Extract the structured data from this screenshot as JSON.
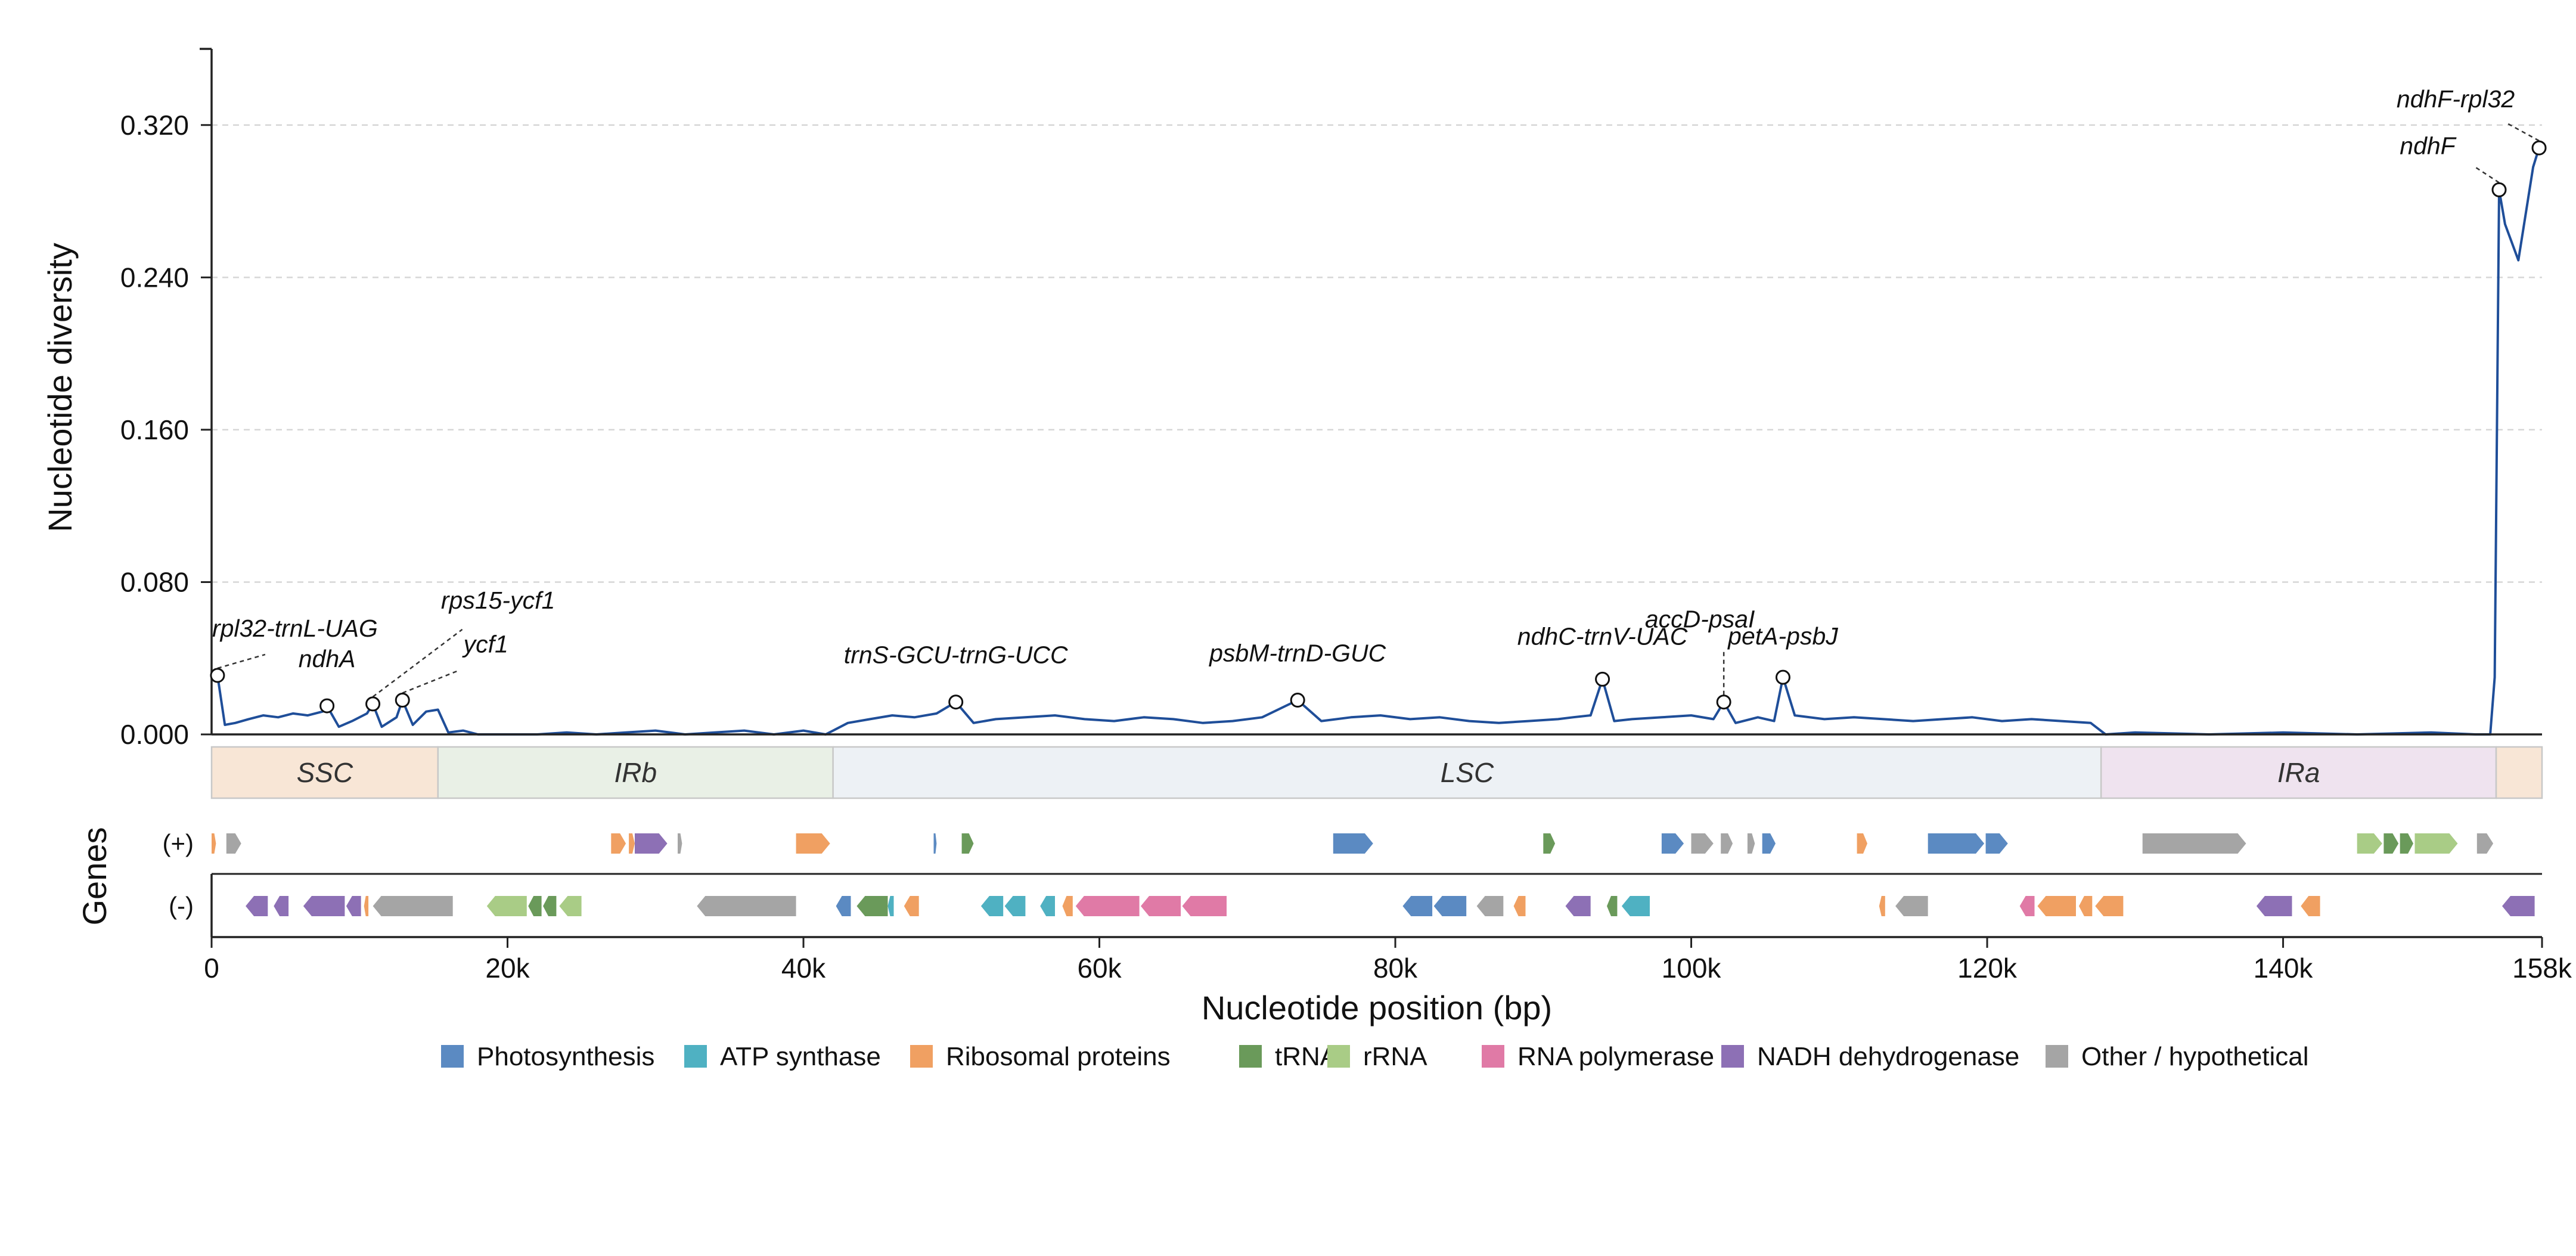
{
  "chart_data": {
    "type": "line",
    "ylabel": "Nucleotide diversity",
    "xlabel": "Nucleotide position (bp)",
    "genes_label": "Genes",
    "ylim": [
      0,
      0.36
    ],
    "xlim": [
      0,
      157500
    ],
    "y_ticks": [
      0.0,
      0.08,
      0.16,
      0.24,
      0.32
    ],
    "y_tick_labels": [
      "0.000",
      "0.080",
      "0.160",
      "0.240",
      "0.320"
    ],
    "x_ticks": [
      0,
      20000,
      40000,
      60000,
      80000,
      100000,
      120000,
      140000,
      157500
    ],
    "x_tick_labels": [
      "0",
      "20k",
      "40k",
      "60k",
      "80k",
      "100k",
      "120k",
      "140k",
      "158k"
    ],
    "grid": "horizontal dashed",
    "line_color": "#1f4e99",
    "series": [
      {
        "x": [
          0,
          400,
          900,
          1600,
          2500,
          3500,
          4500,
          5500,
          6500,
          7500,
          7800,
          8600,
          9500,
          10500,
          10900,
          11500,
          12500,
          12900,
          13600,
          14500,
          15300,
          16000,
          17000,
          18000,
          20000,
          22000,
          24000,
          26000,
          28000,
          30000,
          32000,
          34000,
          36000,
          38000,
          40000,
          41500,
          43000,
          44500,
          46000,
          47500,
          49000,
          50300,
          51500,
          53000,
          55000,
          57000,
          59000,
          61000,
          63000,
          65000,
          67000,
          69000,
          71000,
          73400,
          75000,
          77000,
          79000,
          81000,
          83000,
          85000,
          87000,
          89000,
          91000,
          92000,
          93200,
          94000,
          94800,
          96000,
          98000,
          100000,
          101500,
          102200,
          103000,
          104500,
          105600,
          106200,
          107000,
          109000,
          111000,
          113000,
          115000,
          117000,
          119000,
          121000,
          123000,
          125000,
          127000,
          128000,
          130000,
          135000,
          140000,
          145000,
          150000,
          153000,
          154000,
          154300,
          154600,
          155000,
          155900,
          156900,
          157300
        ],
        "y": [
          0.03,
          0.031,
          0.005,
          0.006,
          0.008,
          0.01,
          0.009,
          0.011,
          0.01,
          0.012,
          0.015,
          0.004,
          0.007,
          0.011,
          0.016,
          0.004,
          0.009,
          0.018,
          0.005,
          0.012,
          0.013,
          0.001,
          0.002,
          0.0,
          0.0,
          0.0,
          0.001,
          0.0,
          0.001,
          0.002,
          0.0,
          0.001,
          0.002,
          0.0,
          0.002,
          0.0,
          0.006,
          0.008,
          0.01,
          0.009,
          0.011,
          0.017,
          0.006,
          0.008,
          0.009,
          0.01,
          0.008,
          0.007,
          0.009,
          0.008,
          0.006,
          0.007,
          0.009,
          0.018,
          0.007,
          0.009,
          0.01,
          0.008,
          0.009,
          0.007,
          0.006,
          0.007,
          0.008,
          0.009,
          0.01,
          0.029,
          0.007,
          0.008,
          0.009,
          0.01,
          0.008,
          0.017,
          0.006,
          0.009,
          0.007,
          0.03,
          0.01,
          0.008,
          0.009,
          0.008,
          0.007,
          0.008,
          0.009,
          0.007,
          0.008,
          0.007,
          0.006,
          0.0,
          0.001,
          0.0,
          0.001,
          0.0,
          0.001,
          0.0,
          0.0,
          0.03,
          0.286,
          0.268,
          0.249,
          0.298,
          0.308
        ]
      }
    ],
    "peaks": [
      {
        "label": "rpl32-trnL-UAG",
        "x": 400,
        "y": 0.031
      },
      {
        "label": "ndhA",
        "x": 7800,
        "y": 0.015
      },
      {
        "label": "rps15-ycf1",
        "x": 10900,
        "y": 0.016
      },
      {
        "label": "ycf1",
        "x": 12900,
        "y": 0.018
      },
      {
        "label": "trnS-GCU-trnG-UCC",
        "x": 50300,
        "y": 0.017
      },
      {
        "label": "psbM-trnD-GUC",
        "x": 73400,
        "y": 0.018
      },
      {
        "label": "ndhC-trnV-UAC",
        "x": 94000,
        "y": 0.029
      },
      {
        "label": "accD-psaI",
        "x": 102200,
        "y": 0.017
      },
      {
        "label": "petA-psbJ",
        "x": 106200,
        "y": 0.03
      },
      {
        "label": "ndhF",
        "x": 154600,
        "y": 0.286
      },
      {
        "label": "ndhF-rpl32",
        "x": 157300,
        "y": 0.308
      }
    ],
    "regions": [
      {
        "label": "SSC",
        "start": 0,
        "end": 15300,
        "color": "#f8e6d6"
      },
      {
        "label": "IRb",
        "start": 15300,
        "end": 42000,
        "color": "#e9f0e6"
      },
      {
        "label": "LSC",
        "start": 42000,
        "end": 127700,
        "color": "#edf1f5"
      },
      {
        "label": "IRa",
        "start": 127700,
        "end": 154400,
        "color": "#efe3ef"
      },
      {
        "label": "",
        "start": 154400,
        "end": 157500,
        "color": "#f8e6d6"
      }
    ],
    "gene_tracks": {
      "plus_label": "(+)",
      "minus_label": "(-)",
      "plus": [
        {
          "s": 0,
          "e": 300,
          "c": "ribo"
        },
        {
          "s": 1000,
          "e": 2000,
          "c": "other"
        },
        {
          "s": 27000,
          "e": 28000,
          "c": "ribo"
        },
        {
          "s": 28200,
          "e": 28600,
          "c": "ribo"
        },
        {
          "s": 28600,
          "e": 30800,
          "c": "nadh"
        },
        {
          "s": 31500,
          "e": 31800,
          "c": "other"
        },
        {
          "s": 39500,
          "e": 41800,
          "c": "ribo"
        },
        {
          "s": 48800,
          "e": 49000,
          "c": "photo"
        },
        {
          "s": 50700,
          "e": 51500,
          "c": "trna"
        },
        {
          "s": 75800,
          "e": 78500,
          "c": "photo"
        },
        {
          "s": 90000,
          "e": 90800,
          "c": "trna"
        },
        {
          "s": 98000,
          "e": 99500,
          "c": "photo"
        },
        {
          "s": 100000,
          "e": 101500,
          "c": "other"
        },
        {
          "s": 102000,
          "e": 102800,
          "c": "other"
        },
        {
          "s": 103800,
          "e": 104300,
          "c": "other"
        },
        {
          "s": 104800,
          "e": 105700,
          "c": "photo"
        },
        {
          "s": 111200,
          "e": 111900,
          "c": "ribo"
        },
        {
          "s": 116000,
          "e": 119800,
          "c": "photo"
        },
        {
          "s": 119900,
          "e": 121400,
          "c": "photo"
        },
        {
          "s": 130500,
          "e": 137500,
          "c": "other"
        },
        {
          "s": 145000,
          "e": 146700,
          "c": "rrna"
        },
        {
          "s": 146800,
          "e": 147800,
          "c": "trna"
        },
        {
          "s": 147900,
          "e": 148800,
          "c": "trna"
        },
        {
          "s": 148900,
          "e": 151800,
          "c": "rrna"
        },
        {
          "s": 153100,
          "e": 154200,
          "c": "other"
        }
      ],
      "minus": [
        {
          "s": 2300,
          "e": 3800,
          "c": "nadh"
        },
        {
          "s": 4200,
          "e": 5200,
          "c": "nadh"
        },
        {
          "s": 6200,
          "e": 9000,
          "c": "nadh"
        },
        {
          "s": 9100,
          "e": 10100,
          "c": "nadh"
        },
        {
          "s": 10300,
          "e": 10600,
          "c": "ribo"
        },
        {
          "s": 10900,
          "e": 16300,
          "c": "other"
        },
        {
          "s": 18600,
          "e": 21300,
          "c": "rrna"
        },
        {
          "s": 21400,
          "e": 22300,
          "c": "trna"
        },
        {
          "s": 22400,
          "e": 23300,
          "c": "trna"
        },
        {
          "s": 23500,
          "e": 25000,
          "c": "rrna"
        },
        {
          "s": 32800,
          "e": 39500,
          "c": "other"
        },
        {
          "s": 42200,
          "e": 43200,
          "c": "photo"
        },
        {
          "s": 43600,
          "e": 45700,
          "c": "trna"
        },
        {
          "s": 45700,
          "e": 46100,
          "c": "atp"
        },
        {
          "s": 46800,
          "e": 47800,
          "c": "ribo"
        },
        {
          "s": 52000,
          "e": 53500,
          "c": "atp"
        },
        {
          "s": 53600,
          "e": 55000,
          "c": "atp"
        },
        {
          "s": 56000,
          "e": 57000,
          "c": "atp"
        },
        {
          "s": 57500,
          "e": 58200,
          "c": "ribo"
        },
        {
          "s": 58400,
          "e": 62700,
          "c": "rna_pol"
        },
        {
          "s": 62800,
          "e": 65500,
          "c": "rna_pol"
        },
        {
          "s": 65600,
          "e": 68600,
          "c": "rna_pol"
        },
        {
          "s": 80500,
          "e": 82500,
          "c": "photo"
        },
        {
          "s": 82600,
          "e": 84800,
          "c": "photo"
        },
        {
          "s": 85500,
          "e": 87300,
          "c": "other"
        },
        {
          "s": 88000,
          "e": 88800,
          "c": "ribo"
        },
        {
          "s": 91500,
          "e": 93200,
          "c": "nadh"
        },
        {
          "s": 94300,
          "e": 95000,
          "c": "trna"
        },
        {
          "s": 95300,
          "e": 97200,
          "c": "atp"
        },
        {
          "s": 112700,
          "e": 113100,
          "c": "ribo"
        },
        {
          "s": 113800,
          "e": 116000,
          "c": "other"
        },
        {
          "s": 122200,
          "e": 123200,
          "c": "rna_pol"
        },
        {
          "s": 123400,
          "e": 126000,
          "c": "ribo"
        },
        {
          "s": 126200,
          "e": 127100,
          "c": "ribo"
        },
        {
          "s": 127300,
          "e": 129200,
          "c": "ribo"
        },
        {
          "s": 138200,
          "e": 140600,
          "c": "nadh"
        },
        {
          "s": 141200,
          "e": 142500,
          "c": "ribo"
        },
        {
          "s": 154800,
          "e": 157000,
          "c": "nadh"
        }
      ]
    },
    "legend": [
      {
        "key": "photo",
        "label": "Photosynthesis",
        "color": "#5b8ac2"
      },
      {
        "key": "atp",
        "label": "ATP synthase",
        "color": "#4fb1c2"
      },
      {
        "key": "ribo",
        "label": "Ribosomal proteins",
        "color": "#f0a062"
      },
      {
        "key": "trna",
        "label": "tRNA",
        "color": "#6a9a5a"
      },
      {
        "key": "rrna",
        "label": "rRNA",
        "color": "#a9cc86"
      },
      {
        "key": "rna_pol",
        "label": "RNA polymerase",
        "color": "#e07aa6"
      },
      {
        "key": "nadh",
        "label": "NADH dehydrogenase",
        "color": "#8d70b5"
      },
      {
        "key": "other",
        "label": "Other / hypothetical",
        "color": "#a5a5a5"
      }
    ]
  }
}
